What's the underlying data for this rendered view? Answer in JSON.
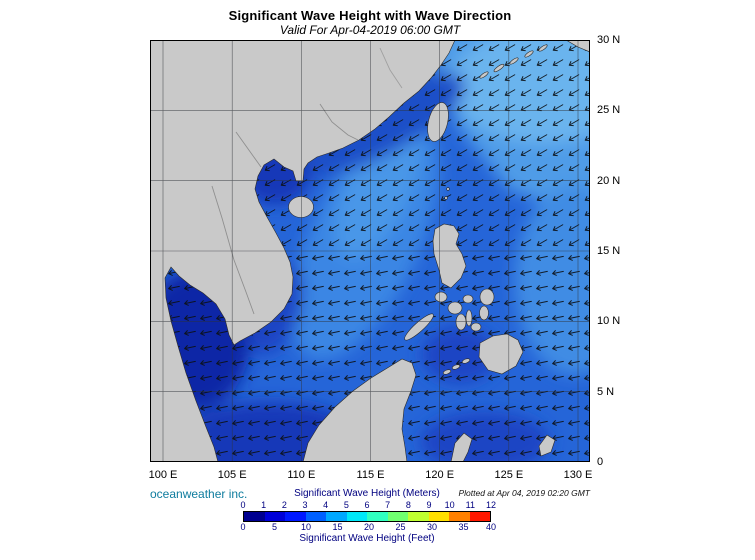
{
  "header": {
    "title": "Significant Wave Height with Wave Direction",
    "subtitle": "Valid For Apr-04-2019 06:00 GMT"
  },
  "map": {
    "lat_labels": [
      "30 N",
      "25 N",
      "20 N",
      "15 N",
      "10 N",
      "5 N",
      "0"
    ],
    "lon_labels": [
      "100 E",
      "105 E",
      "110 E",
      "115 E",
      "120 E",
      "125 E",
      "130 E"
    ]
  },
  "footer": {
    "credit": "oceanweather inc.",
    "plotted_note": "Plotted at Apr 04, 2019 02:20 GMT"
  },
  "legend": {
    "meters_label": "Significant Wave Height (Meters)",
    "feet_label": "Significant Wave Height (Feet)",
    "meters_ticks": [
      "0",
      "1",
      "2",
      "3",
      "4",
      "5",
      "6",
      "7",
      "8",
      "9",
      "10",
      "11",
      "12"
    ],
    "feet_ticks": [
      "0",
      "5",
      "10",
      "15",
      "20",
      "25",
      "30",
      "35",
      "40"
    ],
    "colorbar_colors": [
      "#000090",
      "#0000d8",
      "#0018ff",
      "#0060ff",
      "#00a8ff",
      "#00e8f8",
      "#30ffc0",
      "#70ff70",
      "#c0ff30",
      "#ffe000",
      "#ff8000",
      "#ff1800"
    ]
  },
  "colors": {
    "ocean_base": "#2565d8",
    "ocean_light": "#4f9ce8",
    "ocean_lighter": "#6ab4ee",
    "ocean_dark": "#1238b8",
    "ocean_darkest": "#0d27a6",
    "land": "#c9c9c9",
    "credit_text": "#0e7c9e",
    "legend_text": "#000080"
  }
}
